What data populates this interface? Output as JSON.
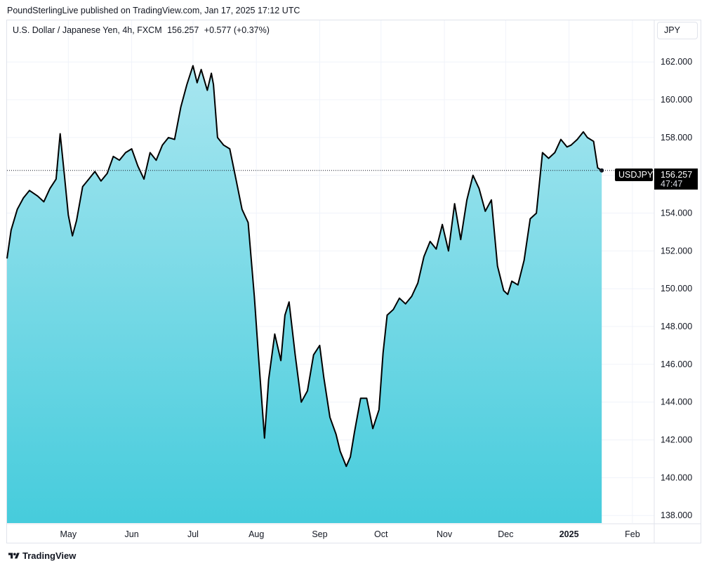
{
  "header": {
    "published_line": "PoundSterlingLive published on TradingView.com, Jan 17, 2025 17:12 UTC"
  },
  "legend": {
    "instrument": "U.S. Dollar / Japanese Yen, 4h, FXCM",
    "price": "156.257",
    "change": "+0.577 (+0.37%)"
  },
  "currency_label": "JPY",
  "price_tags": {
    "symbol": "USDJPY",
    "last_price": "156.257",
    "countdown": "47:47"
  },
  "footer": {
    "brand": "TradingView"
  },
  "colors": {
    "line": "#000000",
    "area_top": "#a8e6f0",
    "area_bottom": "#46ccdc",
    "grid": "#f0f3fa",
    "tag_bg": "#000000"
  },
  "chart_data": {
    "type": "area",
    "title": "U.S. Dollar / Japanese Yen, 4h, FXCM",
    "xlabel": "",
    "ylabel": "",
    "ylim": [
      137.6,
      164.2
    ],
    "y_ticks": [
      138,
      140,
      142,
      144,
      146,
      148,
      150,
      152,
      154,
      156,
      158,
      160,
      162
    ],
    "y_tick_labels": [
      "138.000",
      "140.000",
      "142.000",
      "144.000",
      "146.000",
      "148.000",
      "150.000",
      "152.000",
      "154.000",
      "156.000",
      "158.000",
      "160.000",
      "162.000"
    ],
    "x_tick_labels": [
      "May",
      "Jun",
      "Jul",
      "Aug",
      "Sep",
      "Oct",
      "Nov",
      "Dec",
      "2025",
      "Feb"
    ],
    "x_ticks": [
      "2024-05-01",
      "2024-06-01",
      "2024-07-01",
      "2024-08-01",
      "2024-09-01",
      "2024-10-01",
      "2024-11-01",
      "2024-12-01",
      "2025-01-01",
      "2025-02-01"
    ],
    "xlim": [
      "2024-04-01",
      "2025-02-11"
    ],
    "grid": true,
    "last_value": 156.257,
    "series": [
      {
        "name": "USDJPY",
        "x": [
          "2024-04-01",
          "2024-04-03",
          "2024-04-06",
          "2024-04-09",
          "2024-04-12",
          "2024-04-16",
          "2024-04-19",
          "2024-04-22",
          "2024-04-25",
          "2024-04-27",
          "2024-04-29",
          "2024-05-01",
          "2024-05-03",
          "2024-05-05",
          "2024-05-08",
          "2024-05-11",
          "2024-05-14",
          "2024-05-17",
          "2024-05-20",
          "2024-05-23",
          "2024-05-26",
          "2024-05-29",
          "2024-06-01",
          "2024-06-04",
          "2024-06-07",
          "2024-06-10",
          "2024-06-13",
          "2024-06-16",
          "2024-06-19",
          "2024-06-22",
          "2024-06-25",
          "2024-06-28",
          "2024-07-01",
          "2024-07-03",
          "2024-07-05",
          "2024-07-08",
          "2024-07-10",
          "2024-07-11",
          "2024-07-13",
          "2024-07-16",
          "2024-07-19",
          "2024-07-22",
          "2024-07-25",
          "2024-07-28",
          "2024-07-31",
          "2024-08-02",
          "2024-08-05",
          "2024-08-07",
          "2024-08-10",
          "2024-08-13",
          "2024-08-15",
          "2024-08-17",
          "2024-08-20",
          "2024-08-23",
          "2024-08-26",
          "2024-08-29",
          "2024-09-01",
          "2024-09-03",
          "2024-09-06",
          "2024-09-09",
          "2024-09-11",
          "2024-09-14",
          "2024-09-16",
          "2024-09-18",
          "2024-09-21",
          "2024-09-24",
          "2024-09-27",
          "2024-09-30",
          "2024-10-02",
          "2024-10-04",
          "2024-10-07",
          "2024-10-10",
          "2024-10-13",
          "2024-10-16",
          "2024-10-19",
          "2024-10-22",
          "2024-10-25",
          "2024-10-28",
          "2024-10-31",
          "2024-11-03",
          "2024-11-06",
          "2024-11-09",
          "2024-11-12",
          "2024-11-15",
          "2024-11-18",
          "2024-11-21",
          "2024-11-24",
          "2024-11-27",
          "2024-11-30",
          "2024-12-02",
          "2024-12-04",
          "2024-12-07",
          "2024-12-10",
          "2024-12-13",
          "2024-12-16",
          "2024-12-19",
          "2024-12-22",
          "2024-12-25",
          "2024-12-28",
          "2024-12-31",
          "2025-01-02",
          "2025-01-05",
          "2025-01-08",
          "2025-01-10",
          "2025-01-13",
          "2025-01-15",
          "2025-01-17"
        ],
        "values": [
          151.6,
          153.1,
          154.2,
          154.8,
          155.2,
          154.9,
          154.6,
          155.3,
          155.8,
          158.2,
          156.1,
          153.9,
          152.8,
          153.6,
          155.4,
          155.8,
          156.2,
          155.7,
          156.1,
          157.0,
          156.8,
          157.2,
          157.4,
          156.5,
          155.8,
          157.2,
          156.8,
          157.6,
          158.0,
          157.9,
          159.6,
          160.8,
          161.8,
          160.9,
          161.6,
          160.5,
          161.4,
          160.8,
          158.0,
          157.6,
          157.4,
          155.8,
          154.2,
          153.5,
          149.6,
          146.5,
          142.1,
          145.2,
          147.6,
          146.2,
          148.6,
          149.3,
          146.5,
          144.0,
          144.6,
          146.5,
          147.0,
          145.3,
          143.2,
          142.3,
          141.4,
          140.6,
          141.1,
          142.4,
          144.2,
          144.2,
          142.6,
          143.6,
          146.6,
          148.6,
          148.9,
          149.5,
          149.2,
          149.6,
          150.3,
          151.7,
          152.5,
          152.1,
          153.4,
          152.0,
          154.5,
          152.6,
          154.7,
          156.0,
          155.3,
          154.1,
          154.7,
          151.2,
          149.9,
          149.7,
          150.4,
          150.2,
          151.5,
          153.7,
          154.0,
          157.2,
          156.9,
          157.2,
          157.9,
          157.5,
          157.6,
          157.9,
          158.3,
          158.0,
          157.8,
          156.4,
          156.257
        ]
      }
    ]
  }
}
